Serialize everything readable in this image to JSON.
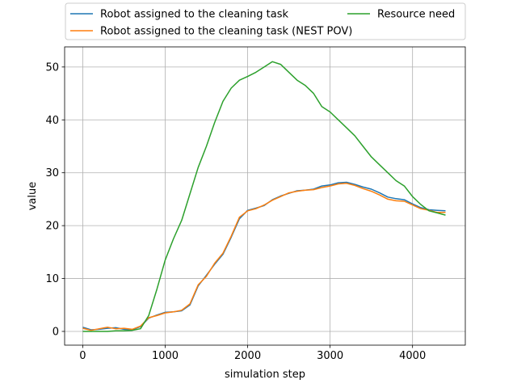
{
  "chart_data": {
    "type": "line",
    "xlabel": "simulation step",
    "ylabel": "value",
    "xlim": [
      -220,
      4640
    ],
    "ylim": [
      -2.6,
      53.8
    ],
    "xticks": [
      0,
      1000,
      2000,
      3000,
      4000
    ],
    "yticks": [
      0,
      10,
      20,
      30,
      40,
      50
    ],
    "xtick_labels": [
      "0",
      "1000",
      "2000",
      "3000",
      "4000"
    ],
    "ytick_labels": [
      "0",
      "10",
      "20",
      "30",
      "40",
      "50"
    ],
    "grid": true,
    "legend_placement": "top-center",
    "series": [
      {
        "name": "Robot assigned to the cleaning task",
        "color": "#1f77b4",
        "x": [
          0,
          100,
          200,
          300,
          400,
          500,
          600,
          700,
          800,
          900,
          1000,
          1100,
          1200,
          1300,
          1400,
          1500,
          1600,
          1700,
          1800,
          1900,
          2000,
          2100,
          2200,
          2300,
          2400,
          2500,
          2600,
          2700,
          2800,
          2900,
          3000,
          3100,
          3200,
          3300,
          3400,
          3500,
          3600,
          3700,
          3800,
          3900,
          4000,
          4100,
          4200,
          4300,
          4400
        ],
        "y": [
          0.8,
          0.3,
          0.4,
          0.6,
          0.7,
          0.4,
          0.3,
          0.9,
          2.5,
          3.1,
          3.6,
          3.7,
          3.9,
          5.0,
          8.6,
          10.6,
          12.7,
          14.6,
          17.8,
          21.3,
          22.9,
          23.3,
          23.8,
          24.9,
          25.6,
          26.1,
          26.6,
          26.7,
          26.9,
          27.5,
          27.7,
          28.1,
          28.2,
          27.8,
          27.3,
          26.9,
          26.2,
          25.4,
          25.1,
          24.9,
          24.1,
          23.4,
          23.0,
          22.9,
          22.8
        ]
      },
      {
        "name": "Robot assigned to the cleaning task (NEST POV)",
        "color": "#ff7f0e",
        "x": [
          0,
          100,
          200,
          300,
          400,
          500,
          600,
          700,
          800,
          900,
          1000,
          1100,
          1200,
          1300,
          1400,
          1500,
          1600,
          1700,
          1800,
          1900,
          2000,
          2100,
          2200,
          2300,
          2400,
          2500,
          2600,
          2700,
          2800,
          2900,
          3000,
          3100,
          3200,
          3300,
          3400,
          3500,
          3600,
          3700,
          3800,
          3900,
          4000,
          4100,
          4200,
          4300,
          4400
        ],
        "y": [
          0.6,
          0.2,
          0.5,
          0.8,
          0.5,
          0.6,
          0.4,
          1.0,
          2.6,
          3.0,
          3.5,
          3.7,
          4.0,
          5.2,
          8.8,
          10.4,
          12.9,
          14.8,
          18.0,
          21.6,
          22.8,
          23.2,
          23.9,
          24.8,
          25.5,
          26.2,
          26.5,
          26.7,
          26.8,
          27.2,
          27.5,
          27.9,
          28.0,
          27.6,
          27.0,
          26.5,
          25.8,
          25.0,
          24.7,
          24.6,
          23.9,
          23.2,
          22.9,
          22.5,
          22.5
        ]
      },
      {
        "name": "Resource need",
        "color": "#2ca02c",
        "x": [
          0,
          100,
          200,
          300,
          400,
          500,
          600,
          700,
          800,
          900,
          1000,
          1100,
          1200,
          1300,
          1400,
          1500,
          1600,
          1700,
          1800,
          1900,
          2000,
          2100,
          2200,
          2300,
          2400,
          2500,
          2600,
          2700,
          2800,
          2900,
          3000,
          3100,
          3200,
          3300,
          3400,
          3500,
          3600,
          3700,
          3800,
          3900,
          4000,
          4100,
          4200,
          4300,
          4400
        ],
        "y": [
          0.0,
          0.0,
          0.0,
          0.0,
          0.1,
          0.1,
          0.2,
          0.5,
          3.0,
          8.0,
          13.5,
          17.5,
          21.0,
          26.0,
          31.0,
          35.0,
          39.5,
          43.5,
          46.0,
          47.5,
          48.2,
          49.0,
          50.0,
          51.0,
          50.5,
          49.0,
          47.5,
          46.5,
          45.0,
          42.5,
          41.5,
          40.0,
          38.5,
          37.0,
          35.0,
          33.0,
          31.5,
          30.0,
          28.5,
          27.5,
          25.5,
          24.0,
          22.8,
          22.4,
          22.0
        ]
      }
    ]
  }
}
